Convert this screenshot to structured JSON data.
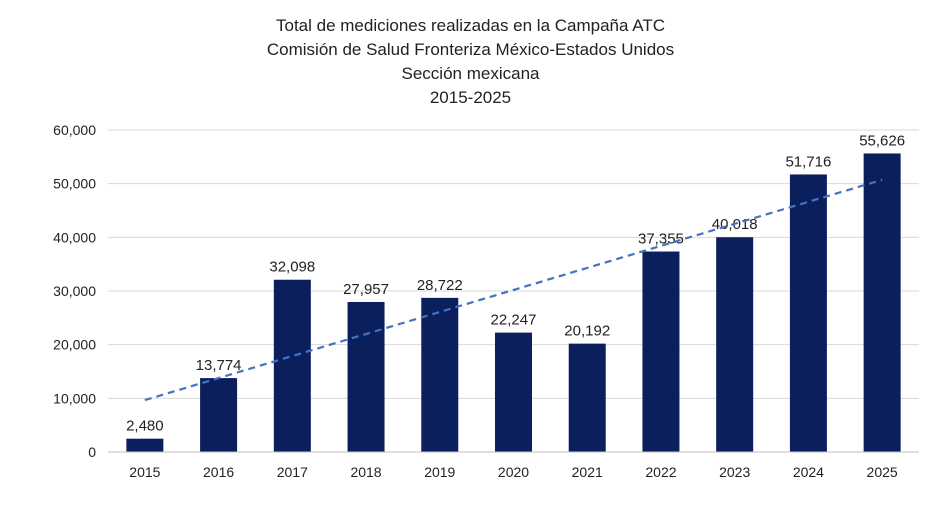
{
  "chart_data": {
    "type": "bar",
    "title": [
      "Total de mediciones realizadas en la Campaña ATC",
      "Comisión de Salud Fronteriza México-Estados Unidos",
      "Sección mexicana",
      "2015-2025"
    ],
    "categories": [
      "2015",
      "2016",
      "2017",
      "2018",
      "2019",
      "2020",
      "2021",
      "2022",
      "2023",
      "2024",
      "2025"
    ],
    "values": [
      2480,
      13774,
      32098,
      27957,
      28722,
      22247,
      20192,
      37355,
      40018,
      51716,
      55626
    ],
    "data_labels": [
      "2,480",
      "13,774",
      "32,098",
      "27,957",
      "28,722",
      "22,247",
      "20,192",
      "37,355",
      "40,018",
      "51,716",
      "55,626"
    ],
    "ylim": [
      0,
      60000
    ],
    "yticks": [
      0,
      10000,
      20000,
      30000,
      40000,
      50000,
      60000
    ],
    "ytick_labels": [
      "0",
      "10,000",
      "20,000",
      "30,000",
      "40,000",
      "50,000",
      "60,000"
    ],
    "trendline": {
      "type": "linear",
      "style": "dashed",
      "color": "#4472C4"
    },
    "bar_color": "#0B1F5C",
    "grid": true,
    "legend": "none"
  }
}
